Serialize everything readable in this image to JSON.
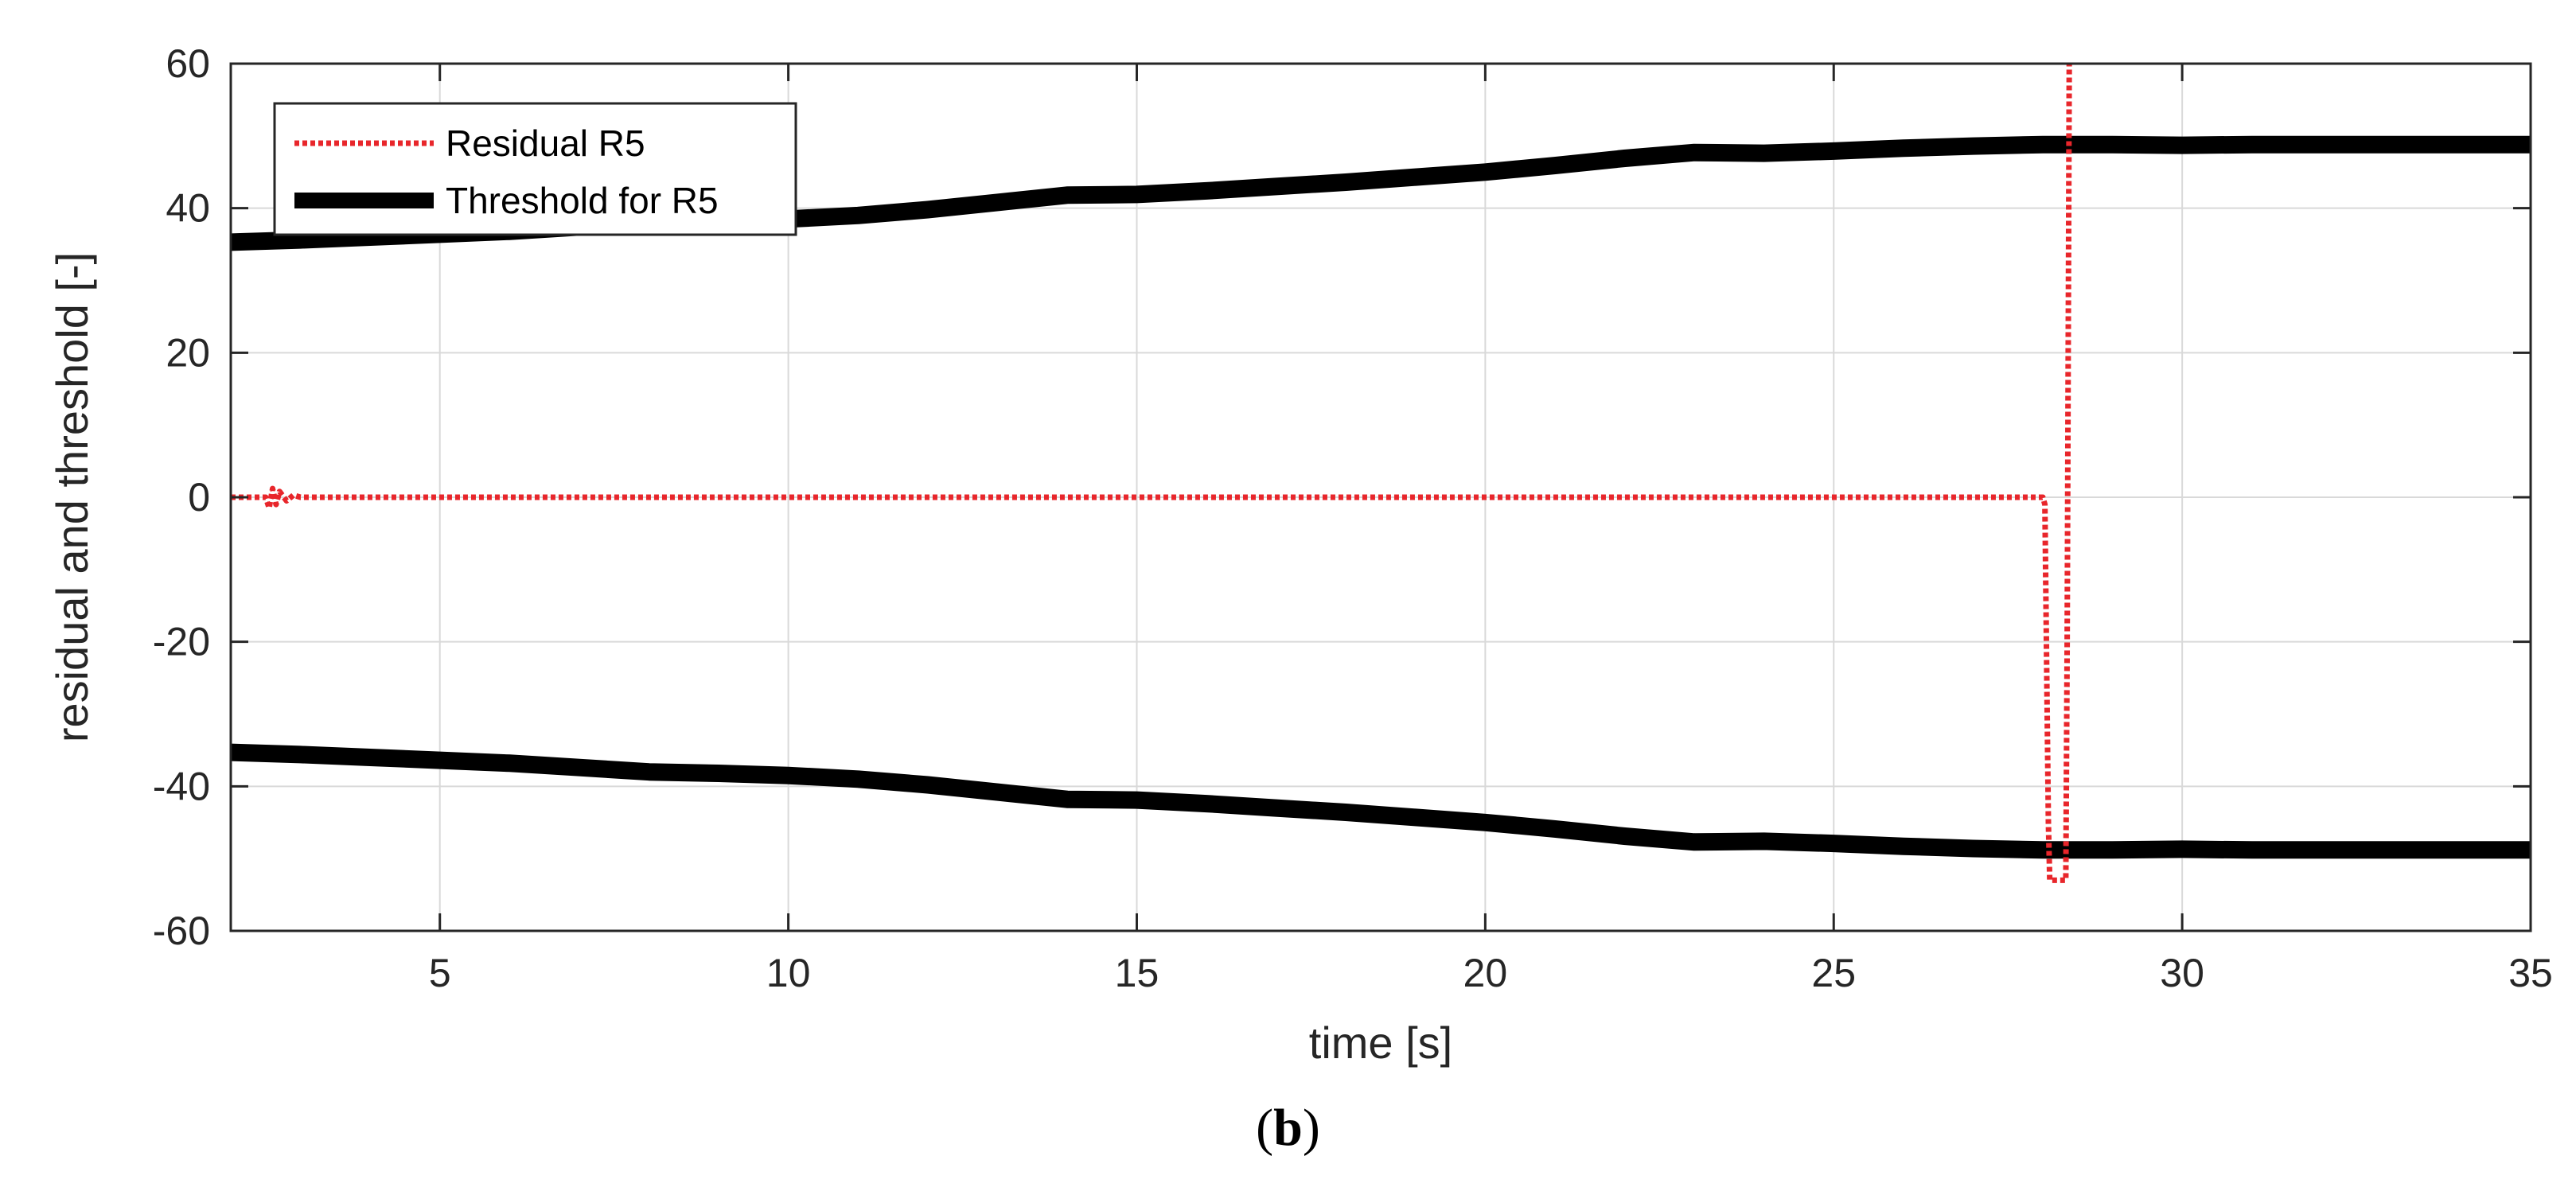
{
  "chart_data": {
    "type": "line",
    "title": "",
    "xlabel": "time [s]",
    "ylabel": "residual and threshold [-]",
    "xlim": [
      2,
      35
    ],
    "ylim": [
      -60,
      60
    ],
    "xticks": [
      5,
      10,
      15,
      20,
      25,
      30,
      35
    ],
    "yticks": [
      -60,
      -40,
      -20,
      0,
      20,
      40,
      60
    ],
    "grid": true,
    "legend_position": "top-left",
    "series": [
      {
        "name": "Residual R5",
        "color": "#e8262b",
        "style": "dotted",
        "x": [
          2.0,
          2.5,
          2.55,
          2.6,
          2.65,
          2.7,
          2.8,
          2.9,
          3.0,
          3.2,
          3.5,
          28.0,
          28.03,
          28.08,
          28.1,
          28.33,
          28.35,
          28.38,
          28.4
        ],
        "y": [
          0,
          0,
          -1.5,
          1.2,
          -1.0,
          0.8,
          -0.5,
          0.3,
          0,
          0,
          0,
          0,
          -1,
          -45,
          -53,
          -53,
          -20,
          60,
          60
        ]
      },
      {
        "name": "Threshold for R5",
        "color": "#000000",
        "style": "solid",
        "x": [
          2,
          3,
          4,
          5,
          6,
          7,
          8,
          9,
          10,
          11,
          12,
          13,
          14,
          15,
          16,
          17,
          18,
          19,
          20,
          21,
          22,
          23,
          24,
          25,
          26,
          27,
          28,
          29,
          30,
          31,
          32,
          33,
          34,
          35
        ],
        "y": [
          35.3,
          35.6,
          36.0,
          36.4,
          36.8,
          37.4,
          38.0,
          38.2,
          38.5,
          39.0,
          39.8,
          40.8,
          41.8,
          41.9,
          42.4,
          43.0,
          43.6,
          44.3,
          45.0,
          45.9,
          46.9,
          47.7,
          47.6,
          47.9,
          48.3,
          48.6,
          48.8,
          48.8,
          48.7,
          48.8,
          48.8,
          48.8,
          48.8,
          48.8
        ]
      },
      {
        "name": "",
        "color": "#000000",
        "style": "solid",
        "x": [
          2,
          3,
          4,
          5,
          6,
          7,
          8,
          9,
          10,
          11,
          12,
          13,
          14,
          15,
          16,
          17,
          18,
          19,
          20,
          21,
          22,
          23,
          24,
          25,
          26,
          27,
          28,
          29,
          30,
          31,
          32,
          33,
          34,
          35
        ],
        "y": [
          -35.3,
          -35.6,
          -36.0,
          -36.4,
          -36.8,
          -37.4,
          -38.0,
          -38.2,
          -38.5,
          -39.0,
          -39.8,
          -40.8,
          -41.8,
          -41.9,
          -42.4,
          -43.0,
          -43.6,
          -44.3,
          -45.0,
          -45.9,
          -46.9,
          -47.7,
          -47.6,
          -47.9,
          -48.3,
          -48.6,
          -48.8,
          -48.8,
          -48.7,
          -48.8,
          -48.8,
          -48.8,
          -48.8,
          -48.8
        ]
      }
    ]
  },
  "caption": {
    "open": "(",
    "letter": "b",
    "close": ")"
  }
}
